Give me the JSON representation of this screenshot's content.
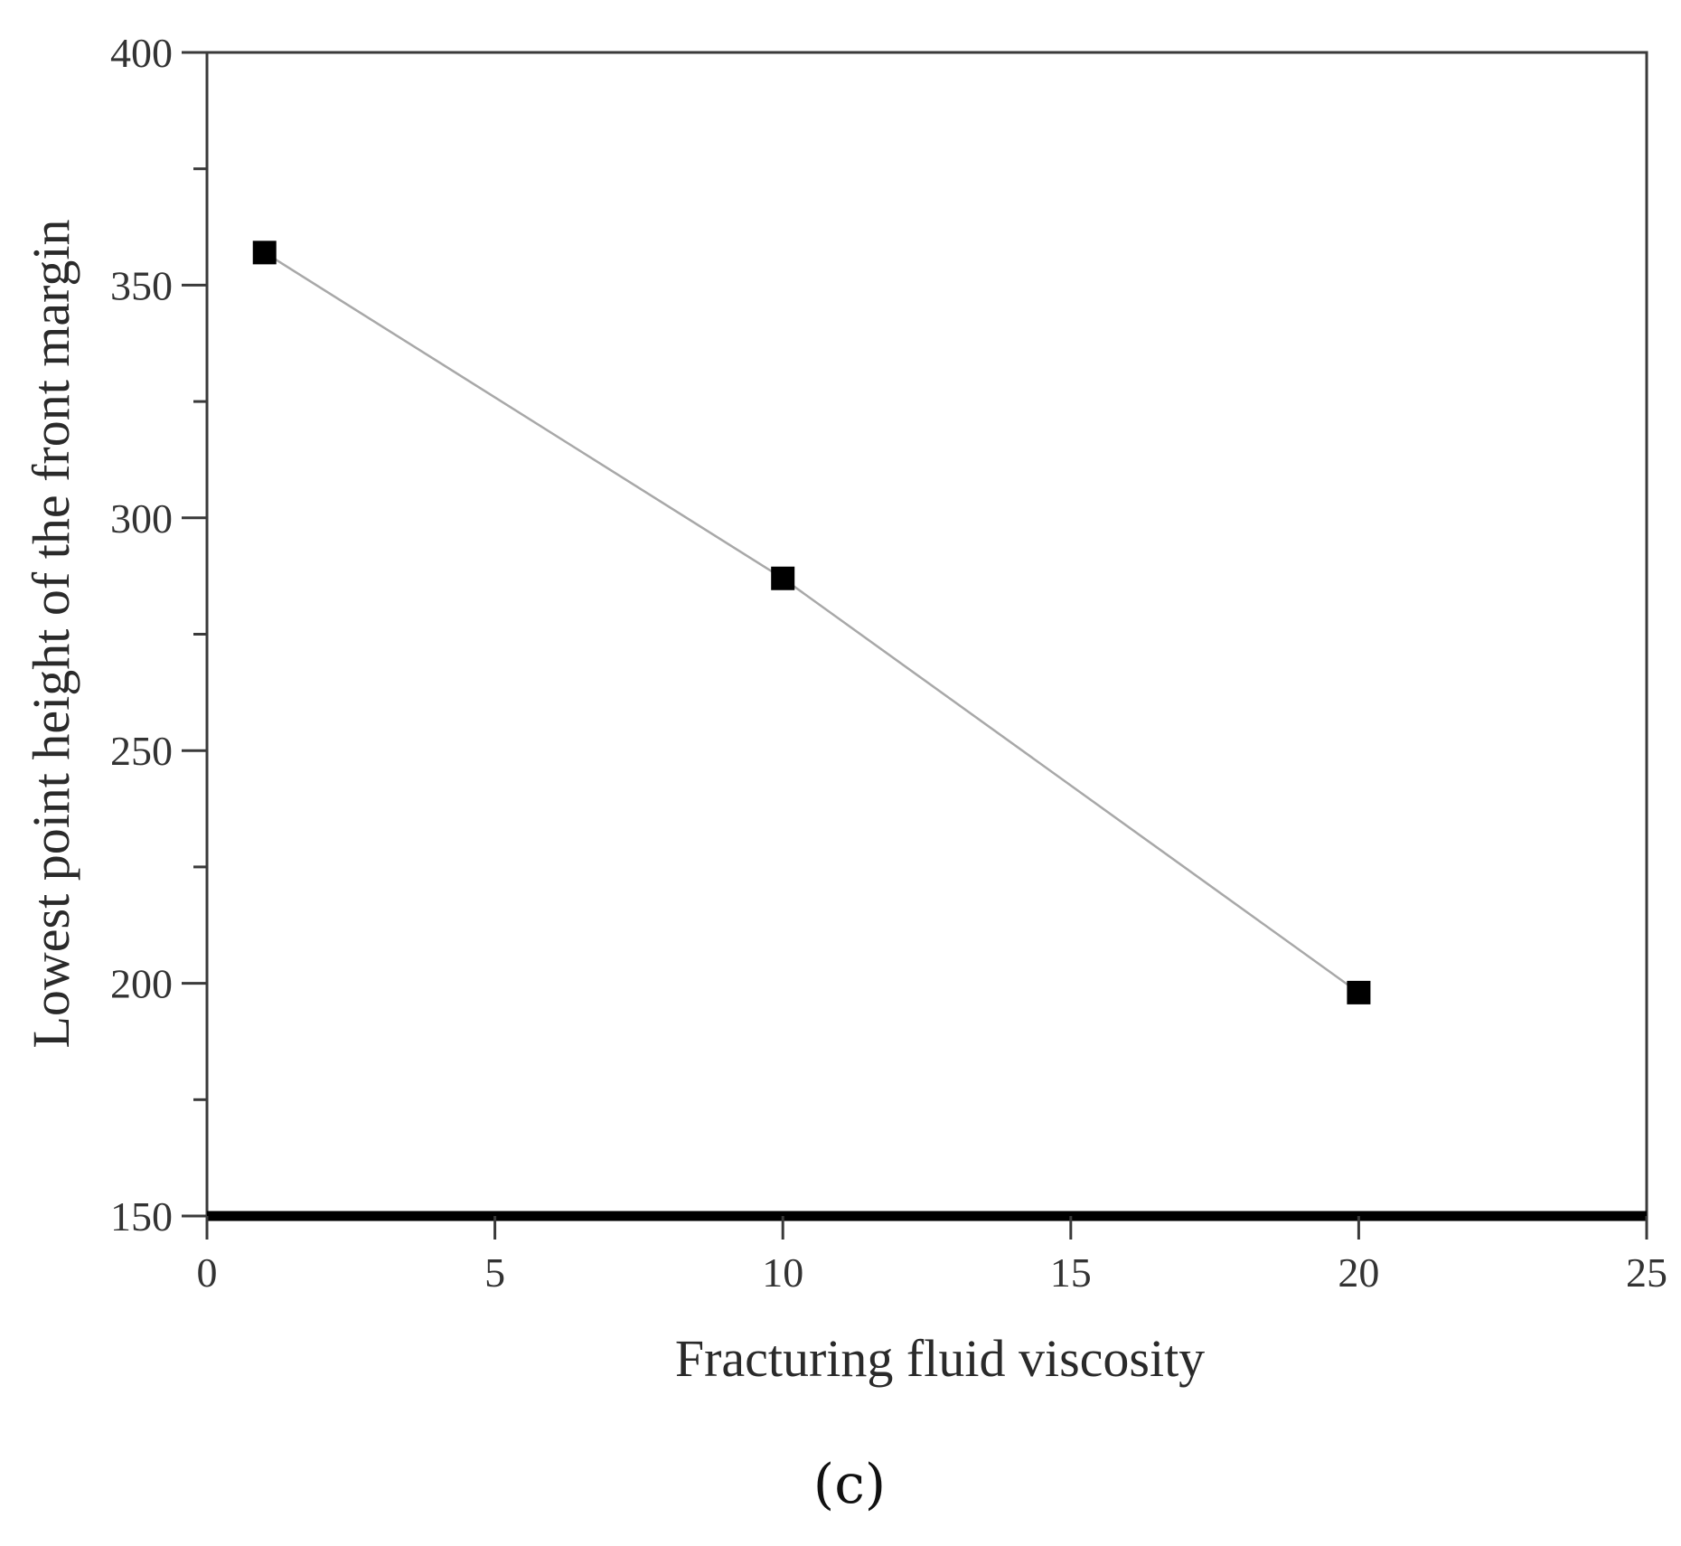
{
  "chart_data": {
    "type": "line",
    "title": "",
    "xlabel": "Fracturing fluid viscosity",
    "ylabel": "Lowest point height of the front margin",
    "xlim": [
      0,
      25
    ],
    "ylim": [
      150,
      400
    ],
    "x_ticks": [
      0,
      5,
      10,
      15,
      20,
      25
    ],
    "y_ticks": [
      150,
      200,
      250,
      300,
      350,
      400
    ],
    "x_tick_labels": [
      "0",
      "5",
      "10",
      "15",
      "20",
      "25"
    ],
    "y_tick_labels": [
      "150",
      "200",
      "250",
      "300",
      "350",
      "400"
    ],
    "grid": false,
    "series": [
      {
        "marker": "square",
        "marker_color": "#000000",
        "line_color": "#a8a8a8",
        "x": [
          1,
          10,
          20
        ],
        "y": [
          357,
          287,
          198
        ]
      }
    ]
  },
  "panel_label": "(c)"
}
